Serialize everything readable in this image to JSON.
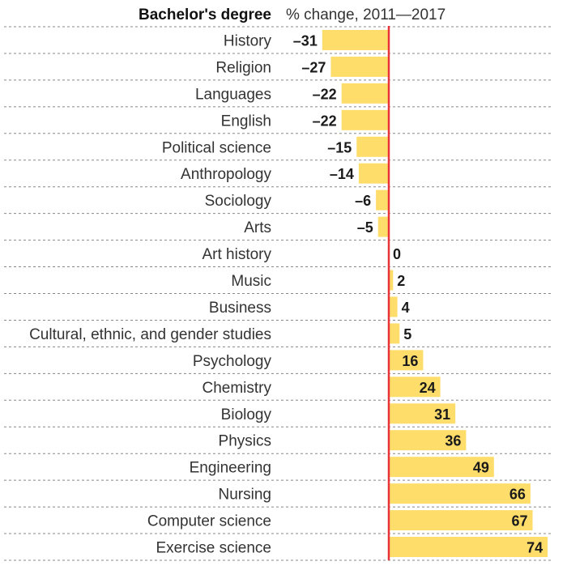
{
  "chart_data": {
    "type": "bar",
    "orientation": "horizontal",
    "title": "Bachelor's degree",
    "subtitle": "% change, 2011—2017",
    "categories": [
      "History",
      "Religion",
      "Languages",
      "English",
      "Political science",
      "Anthropology",
      "Sociology",
      "Arts",
      "Art history",
      "Music",
      "Business",
      "Cultural, ethnic, and gender studies",
      "Psychology",
      "Chemistry",
      "Biology",
      "Physics",
      "Engineering",
      "Nursing",
      "Computer science",
      "Exercise science"
    ],
    "values": [
      -31,
      -27,
      -22,
      -22,
      -15,
      -14,
      -6,
      -5,
      0,
      2,
      4,
      5,
      16,
      24,
      31,
      36,
      49,
      66,
      67,
      74
    ],
    "value_labels": [
      "–31",
      "–27",
      "–22",
      "–22",
      "–15",
      "–14",
      "–6",
      "–5",
      "0",
      "2",
      "4",
      "5",
      "16",
      "24",
      "31",
      "36",
      "49",
      "66",
      "67",
      "74"
    ],
    "xlim": [
      -31,
      74
    ],
    "bar_color": "#FFDD6B",
    "zero_line_color": "#E8333A",
    "grid": "dotted row separators"
  }
}
